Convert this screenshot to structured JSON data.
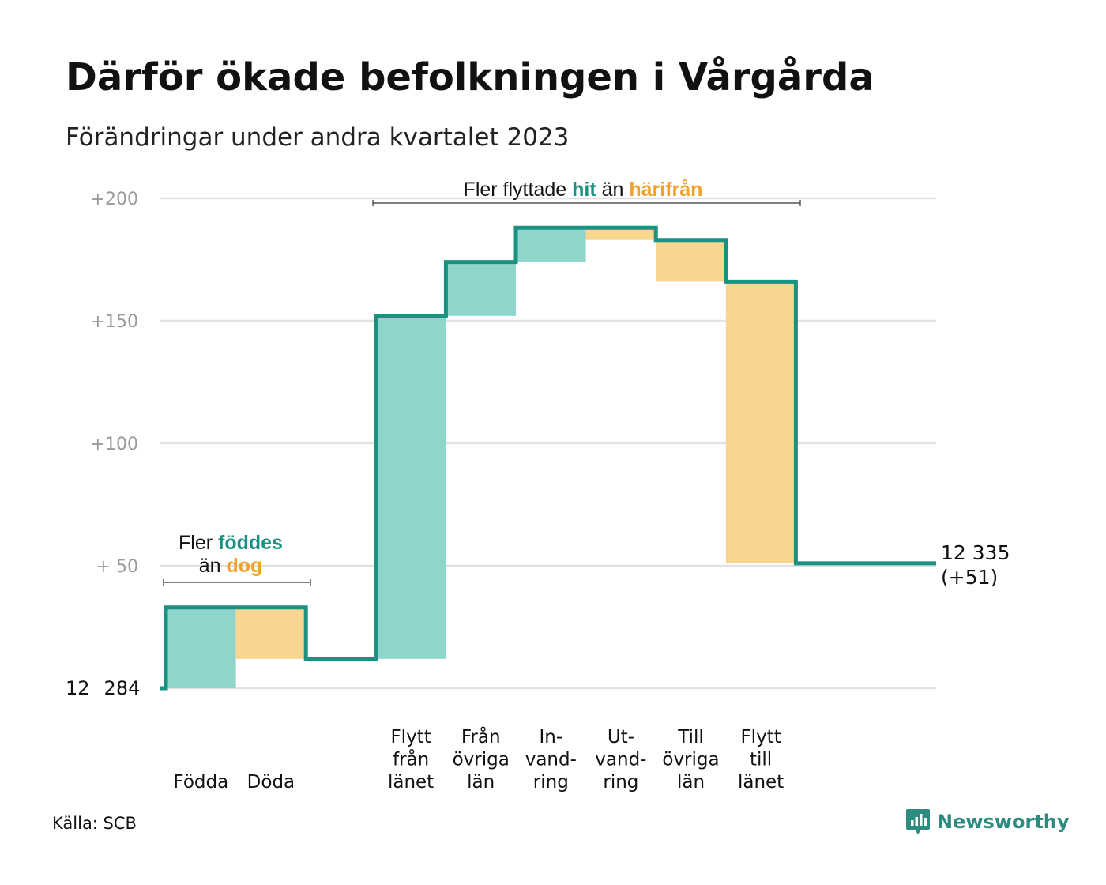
{
  "title": "Därför ökade befolkningen i Vårgårda",
  "subtitle": "Förändringar under andra kvartalet 2023",
  "source": "Källa: SCB",
  "brand": {
    "name": "Newsworthy",
    "icon": "newsworthy-logo-icon"
  },
  "colors": {
    "increase_fill": "#8fd5cc",
    "decrease_fill": "#f9d690",
    "line": "#1a9181",
    "grid": "#e2e2e2",
    "tick": "#9a9a9a",
    "accent_hit": "#1a9181",
    "accent_dog": "#f1a02a"
  },
  "chart_data": {
    "type": "bar",
    "subtype": "waterfall",
    "baseline_label_parts": [
      "12",
      "284"
    ],
    "y_ticks": [
      "+200",
      "+150",
      "+100",
      "+ 50"
    ],
    "ylim": [
      0,
      200
    ],
    "steps": [
      {
        "label_lines": [
          "Födda"
        ],
        "value": 33,
        "kind": "increase"
      },
      {
        "label_lines": [
          "Döda"
        ],
        "value": -21,
        "kind": "decrease"
      },
      {
        "label_lines": [],
        "value": 0,
        "kind": "gap"
      },
      {
        "label_lines": [
          "Flytt",
          "från",
          "länet"
        ],
        "value": 140,
        "kind": "increase"
      },
      {
        "label_lines": [
          "Från",
          "övriga",
          "län"
        ],
        "value": 22,
        "kind": "increase"
      },
      {
        "label_lines": [
          "In-",
          "vand-",
          "ring"
        ],
        "value": 14,
        "kind": "increase"
      },
      {
        "label_lines": [
          "Ut-",
          "vand-",
          "ring"
        ],
        "value": -5,
        "kind": "decrease"
      },
      {
        "label_lines": [
          "Till",
          "övriga",
          "län"
        ],
        "value": -17,
        "kind": "decrease"
      },
      {
        "label_lines": [
          "Flytt",
          "till",
          "länet"
        ],
        "value": -115,
        "kind": "decrease"
      }
    ],
    "final_total": 51,
    "end_label_lines": [
      "12 335",
      "(+51)"
    ],
    "annotations": [
      {
        "lines": [
          [
            {
              "text": "Fler ",
              "accent": ""
            },
            {
              "text": "föddes",
              "accent": "hit"
            }
          ],
          [
            {
              "text": "än ",
              "accent": ""
            },
            {
              "text": "dog",
              "accent": "dog"
            }
          ]
        ]
      },
      {
        "lines": [
          [
            {
              "text": "Fler flyttade ",
              "accent": ""
            },
            {
              "text": "hit",
              "accent": "hit"
            },
            {
              "text": " än ",
              "accent": ""
            },
            {
              "text": "härifrån",
              "accent": "dog"
            }
          ]
        ]
      }
    ]
  }
}
